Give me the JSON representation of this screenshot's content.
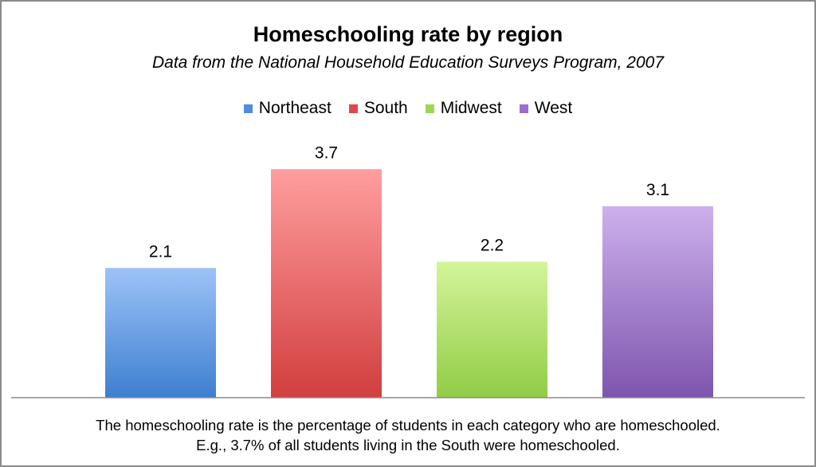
{
  "chart_data": {
    "type": "bar",
    "title": "Homeschooling rate by region",
    "subtitle": "Data from the National Household Education Surveys Program, 2007",
    "categories": [
      "Northeast",
      "South",
      "Midwest",
      "West"
    ],
    "values": [
      2.1,
      3.7,
      2.2,
      3.1
    ],
    "data_labels": [
      "2.1",
      "3.7",
      "2.2",
      "3.1"
    ],
    "colors": {
      "Northeast": {
        "top": "#9cc3f7",
        "bottom": "#3e7fd0",
        "legend": "#4f8de0"
      },
      "South": {
        "top": "#ff9e9e",
        "bottom": "#d23e3e",
        "legend": "#e04848"
      },
      "Midwest": {
        "top": "#d3f59a",
        "bottom": "#92cc46",
        "legend": "#9ed553"
      },
      "West": {
        "top": "#cdb0ec",
        "bottom": "#7e55ae",
        "legend": "#9a70cc"
      }
    },
    "legend": [
      "Northeast",
      "South",
      "Midwest",
      "West"
    ],
    "legend_position": "top",
    "ylim": [
      0,
      4
    ],
    "grid": false,
    "xlabel": "",
    "ylabel": ""
  },
  "caption": {
    "line1": "The homeschooling rate is the percentage of students in each category who are homeschooled.",
    "line2": "E.g., 3.7% of all students living in the South were homeschooled."
  }
}
